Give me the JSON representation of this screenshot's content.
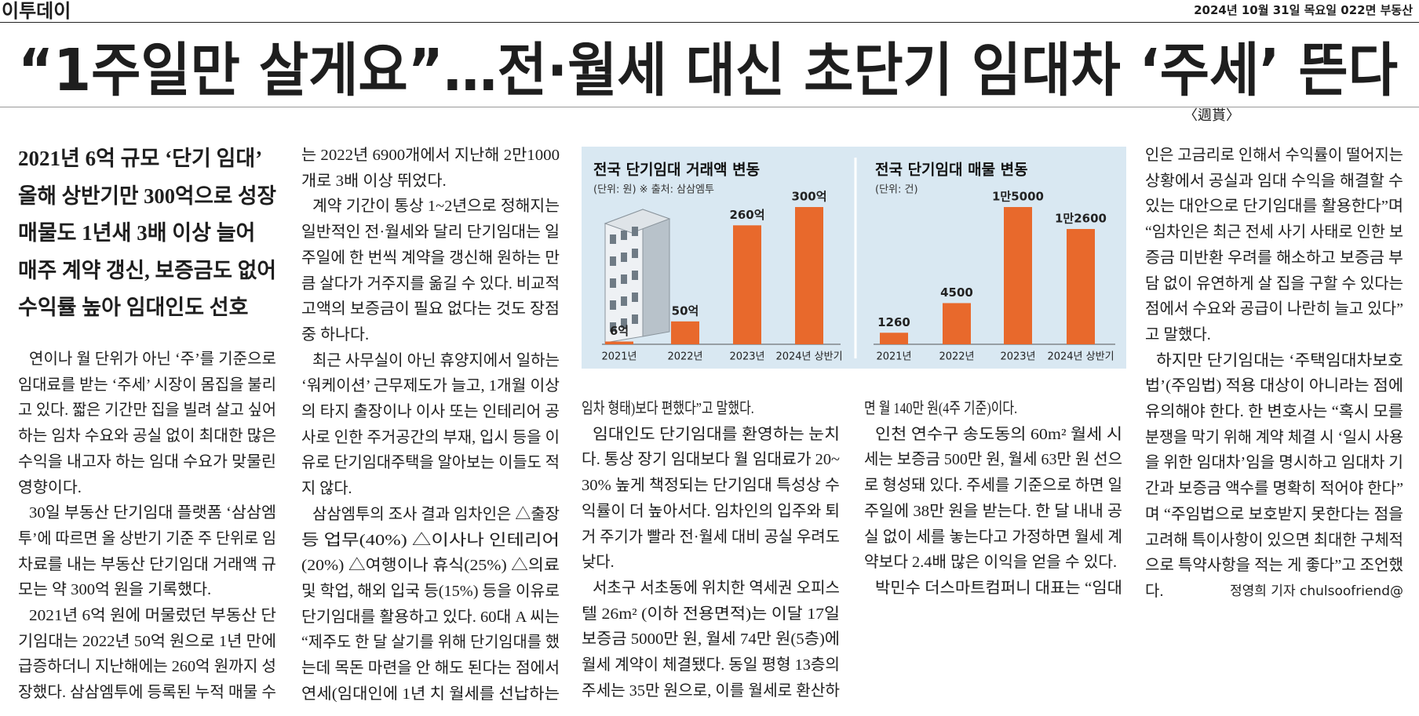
{
  "header": {
    "logo": "이투데이",
    "dateline": "2024년 10월 31일 목요일 022면 부동산"
  },
  "title": "“1주일만 살게요”…전·월세 대신 초단기 임대차 ‘주세’ 뜬다",
  "tag": "〈週貰〉",
  "subheads": [
    "2021년 6억 규모 ‘단기 임대’",
    "올해 상반기만 300억으로 성장",
    "매물도 1년새 3배 이상 늘어",
    "매주 계약 갱신, 보증금도 없어",
    "수익률 높아 임대인도 선호"
  ],
  "columns": [
    [
      [
        "연이나 월 단위가 아닌 ‘주’를 기준으로",
        "임대료를 받는 ‘주세’ 시장이 몸집을 불리",
        "고 있다. 짧은 기간만 집을 빌려 살고 싶어",
        "하는 임차 수요와 공실 없이 최대한 많은",
        "수익을 내고자 하는 임대 수요가 맞물린",
        "영향이다."
      ],
      [
        "30일 부동산 단기임대 플랫폼 ‘삼삼엠",
        "투’에 따르면 올 상반기 기준 주 단위로 임",
        "차료를 내는 부동산 단기임대 거래액 규",
        "모는 약 300억 원을 기록했다."
      ],
      [
        "2021년 6억 원에 머물렀던 부동산 단",
        "기임대는 2022년 50억 원으로 1년 만에",
        "급증하더니 지난해에는 260억 원까지 성",
        "장했다. 삼삼엠투에 등록된 누적 매물 수"
      ]
    ],
    [
      [
        "는 2022년 6900개에서 지난해 2만1000",
        "개로 3배 이상 뛰었다."
      ],
      [
        "계약 기간이 통상 1~2년으로 정해지는",
        "일반적인 전·월세와 달리 단기임대는 일",
        "주일에 한 번씩 계약을 갱신해 원하는 만",
        "큼 살다가 거주지를 옮길 수 있다. 비교적",
        "고액의 보증금이 필요 없다는 것도 장점",
        "중 하나다."
      ],
      [
        "최근 사무실이 아닌 휴양지에서 일하는",
        "‘워케이션’ 근무제도가 늘고, 1개월 이상",
        "의 타지 출장이나 이사 또는 인테리어 공",
        "사로 인한 주거공간의 부재, 입시 등을 이",
        "유로 단기임대주택을 알아보는 이들도 적",
        "지 않다."
      ],
      [
        "삼삼엠투의 조사 결과 임차인은 △출장",
        "등 업무(40%) △이사나 인테리어",
        "(20%) △여행이나 휴식(25%) △의료",
        "및 학업, 해외 입국 등(15%) 등을 이유로",
        "단기임대를 활용하고 있다. 60대 A 씨는",
        "“제주도 한 달 살기를 위해 단기임대를 했",
        "는데 목돈 마련을 안 해도 된다는 점에서",
        "연세(임대인에 1년 치 월세를 선납하는"
      ]
    ],
    [
      [
        "임차 형태)보다 편했다”고 말했다."
      ],
      [
        "임대인도 단기임대를 환영하는 눈치",
        "다. 통상 장기 임대보다 월 임대료가 20~",
        "30% 높게 책정되는 단기임대 특성상 수",
        "익률이 더 높아서다. 임차인의 입주와 퇴",
        "거 주기가 빨라 전·월세 대비 공실 우려도",
        "낮다."
      ],
      [
        "서초구 서초동에 위치한 역세권 오피스",
        "텔 26m² (이하 전용면적)는 이달 17일",
        "보증금 5000만 원, 월세 74만 원(5층)에",
        "월세 계약이 체결됐다. 동일 평형 13층의",
        "주세는 35만 원으로, 이를 월세로 환산하"
      ]
    ],
    [
      [
        "면 월 140만 원(4주 기준)이다."
      ],
      [
        "인천 연수구 송도동의 60m² 월세 시",
        "세는 보증금 500만 원, 월세 63만 원 선으",
        "로 형성돼 있다. 주세를 기준으로 하면 일",
        "주일에 38만 원을 받는다. 한 달 내내 공",
        "실 없이 세를 놓는다고 가정하면 월세 계",
        "약보다 2.4배 많은 이익을 얻을 수 있다."
      ],
      [
        "박민수 더스마트컴퍼니 대표는 “임대"
      ]
    ],
    [
      [
        "인은 고금리로 인해서 수익률이 떨어지는",
        "상황에서 공실과 임대 수익을 해결할 수",
        "있는 대안으로 단기임대를 활용한다”며",
        "“임차인은 최근 전세 사기 사태로 인한 보",
        "증금 미반환 우려를 해소하고 보증금 부",
        "담 없이 유연하게 살 집을 구할 수 있다는",
        "점에서 수요와 공급이 나란히 늘고 있다”",
        "고 말했다."
      ],
      [
        "하지만 단기임대는 ‘주택임대차보호",
        "법’(주임법) 적용 대상이 아니라는 점에",
        "유의해야 한다. 한 변호사는 “혹시 모를",
        "분쟁을 막기 위해 계약 체결 시 ‘일시 사용",
        "을 위한 임대차’임을 명시하고 임대차 기",
        "간과 보증금 액수를 명확히 적어야 한다”",
        "며 “주임법으로 보호받지 못한다는 점을",
        "고려해 특이사항이 있으면 최대한 구체적",
        "으로 특약사항을 적는 게 좋다”고 조언했",
        "다."
      ]
    ]
  ],
  "byline": "정영희 기자 chulsoofriend@",
  "chart_data": [
    {
      "type": "bar",
      "title": "전국 단기임대 거래액 변동",
      "subtitle": "(단위: 원) ※ 출처: 삼삼엠투",
      "categories": [
        "2021년",
        "2022년",
        "2023년",
        "2024년 상반기"
      ],
      "values": [
        6,
        50,
        260,
        300
      ],
      "value_labels": [
        "6억",
        "50억",
        "260억",
        "300억"
      ],
      "color": "#e8692c"
    },
    {
      "type": "bar",
      "title": "전국 단기임대 매물 변동",
      "subtitle": "(단위: 건)",
      "categories": [
        "2021년",
        "2022년",
        "2023년",
        "2024년 상반기"
      ],
      "values": [
        1260,
        4500,
        15000,
        12600
      ],
      "value_labels": [
        "1260",
        "4500",
        "1만5000",
        "1만2600"
      ],
      "color": "#e8692c"
    }
  ]
}
